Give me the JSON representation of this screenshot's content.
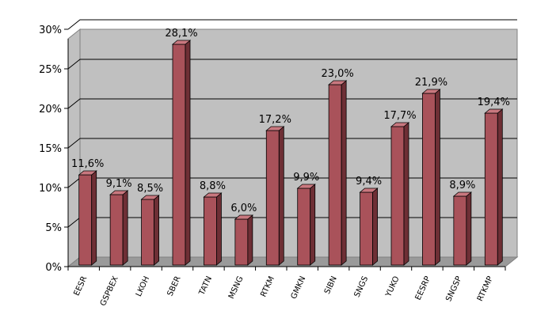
{
  "chart_data": {
    "type": "bar",
    "categories": [
      "EESR",
      "GSPBEX",
      "LKOH",
      "SBER",
      "TATN",
      "MSNG",
      "RTKM",
      "GMKN",
      "SIBN",
      "SNGS",
      "YUKO",
      "EESRP",
      "SNGSP",
      "RTKMP"
    ],
    "values": [
      11.6,
      9.1,
      8.5,
      28.1,
      8.8,
      6.0,
      17.2,
      9.9,
      23.0,
      9.4,
      17.7,
      21.9,
      8.9,
      19.4
    ],
    "data_labels": [
      "11,6%",
      "9,1%",
      "8,5%",
      "28,1%",
      "8,8%",
      "6,0%",
      "17,2%",
      "9,9%",
      "23,0%",
      "9,4%",
      "17,7%",
      "21,9%",
      "8,9%",
      "19,4%"
    ],
    "y_ticks": [
      "0%",
      "5%",
      "10%",
      "15%",
      "20%",
      "25%",
      "30%"
    ],
    "ylim": [
      0,
      30
    ],
    "grid": true,
    "legend": "none",
    "colors": {
      "bar_front": "#a9525a",
      "bar_side": "#6e2f35",
      "bar_top": "#c9787f",
      "wall": "#c0c0c0",
      "floor": "#9a9a9a",
      "grid": "#000000"
    }
  }
}
